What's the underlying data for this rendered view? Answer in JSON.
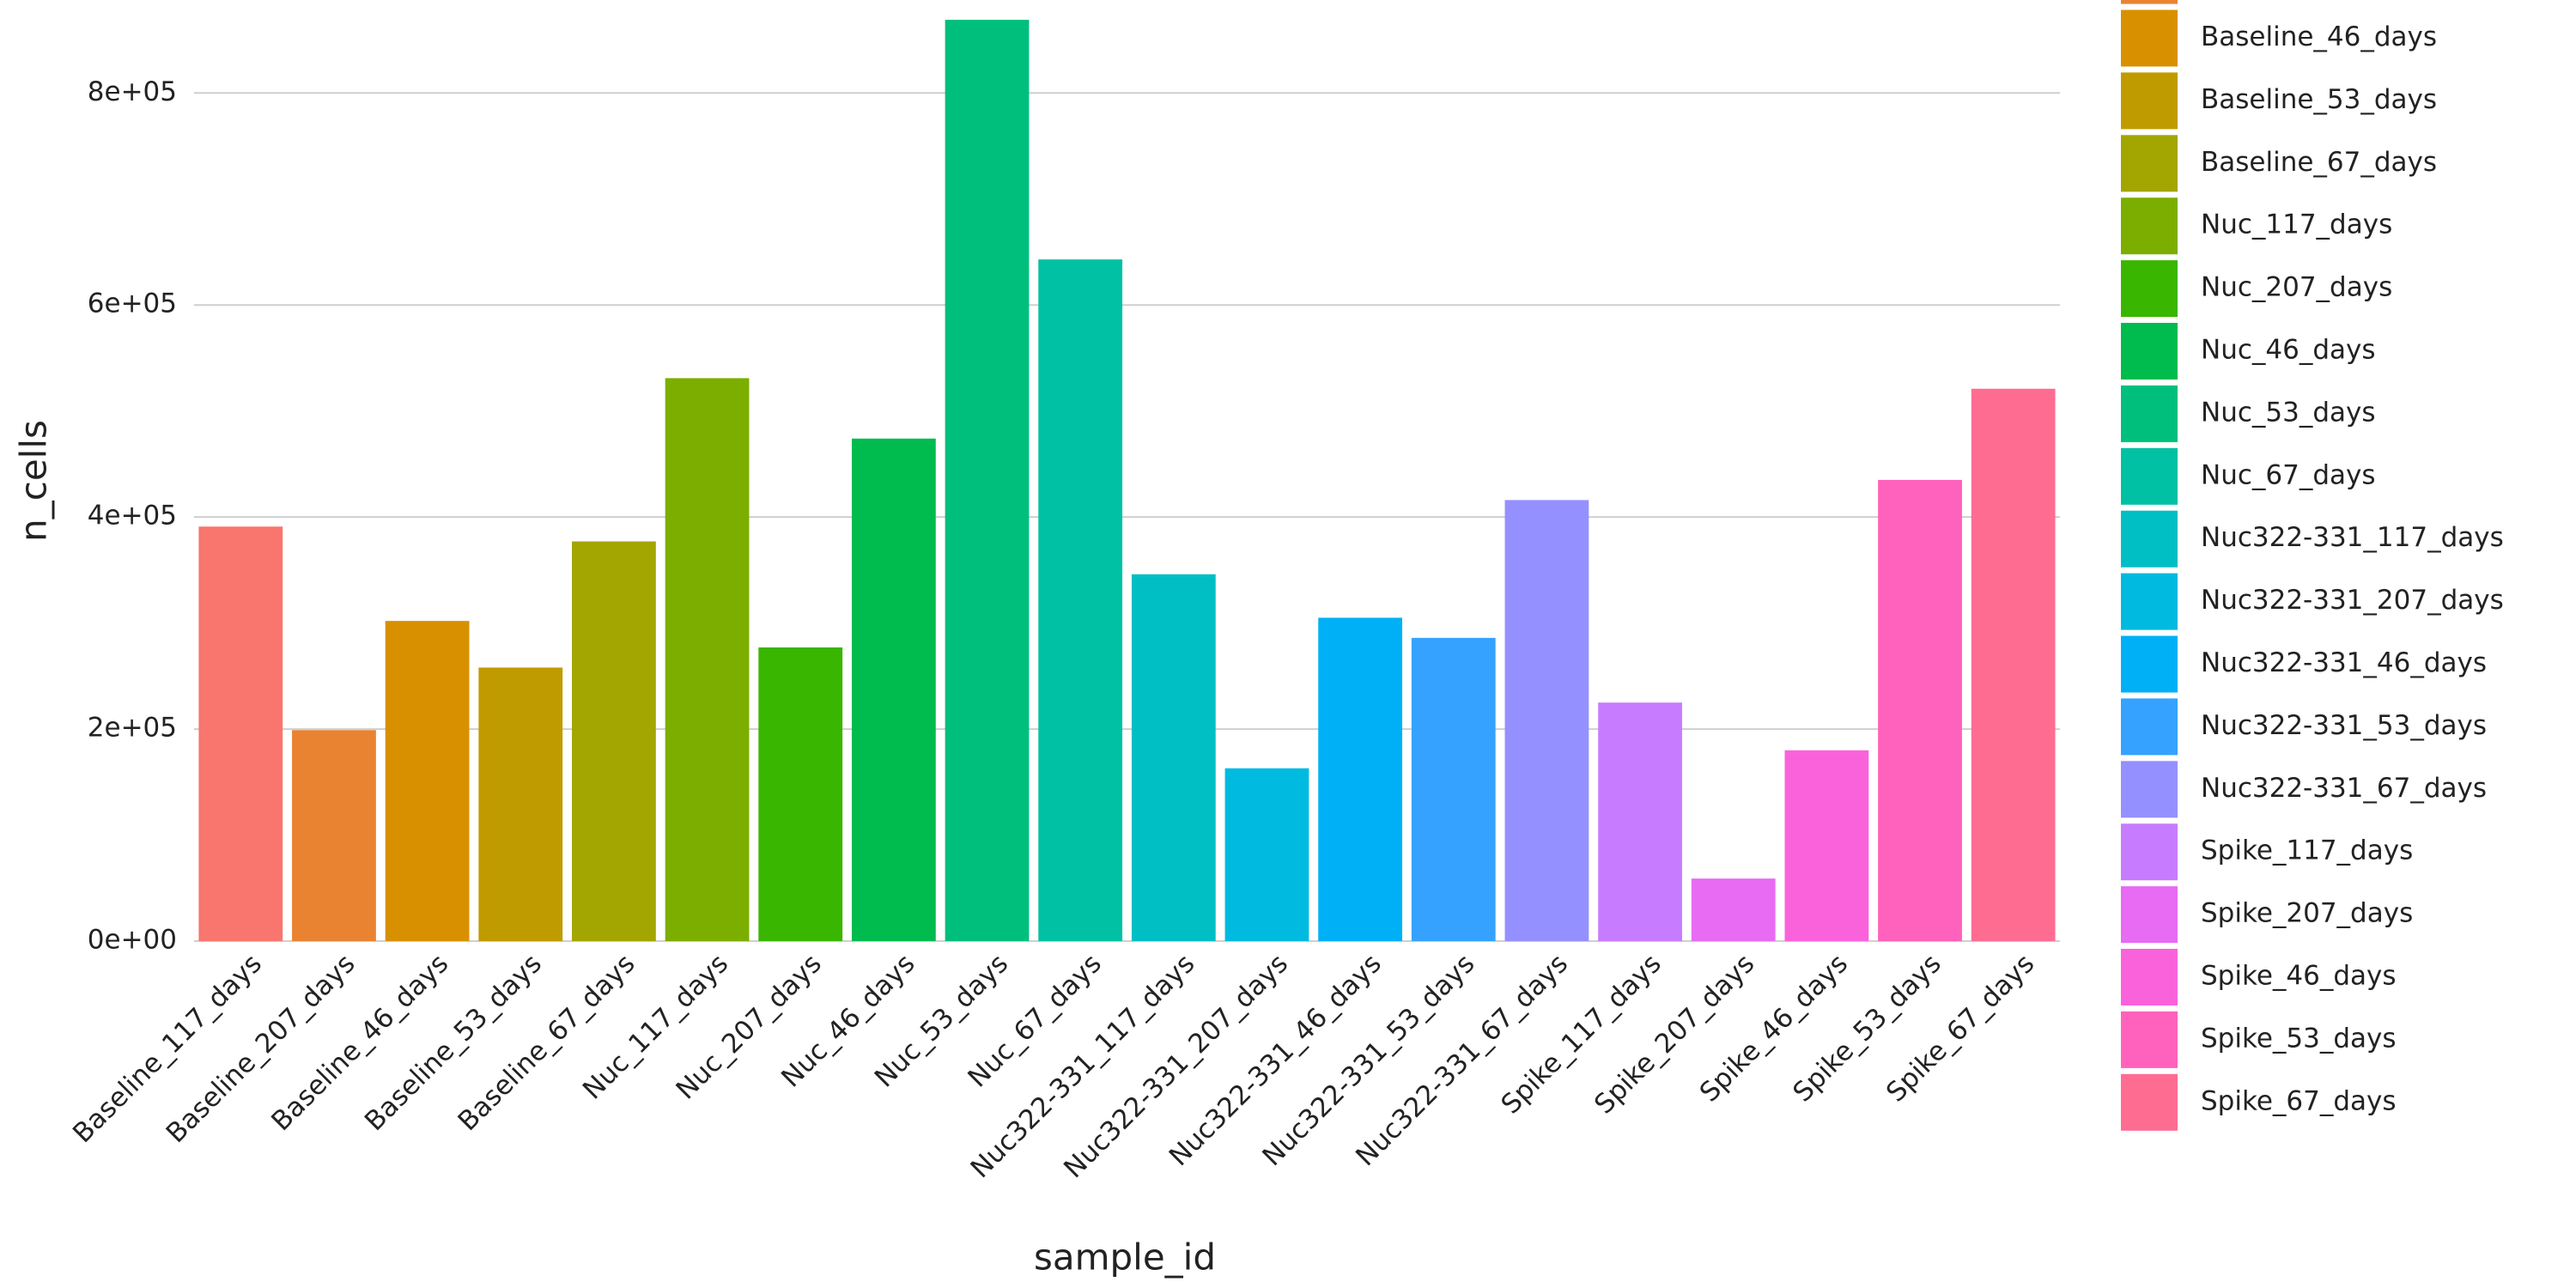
{
  "chart_data": {
    "type": "bar",
    "x_label": "sample_id",
    "y_label": "n_cells",
    "categories": [
      "Baseline_117_days",
      "Baseline_207_days",
      "Baseline_46_days",
      "Baseline_53_days",
      "Baseline_67_days",
      "Nuc_117_days",
      "Nuc_207_days",
      "Nuc_46_days",
      "Nuc_53_days",
      "Nuc_67_days",
      "Nuc322-331_117_days",
      "Nuc322-331_207_days",
      "Nuc322-331_46_days",
      "Nuc322-331_53_days",
      "Nuc322-331_67_days",
      "Spike_117_days",
      "Spike_207_days",
      "Spike_46_days",
      "Spike_53_days",
      "Spike_67_days"
    ],
    "values": [
      391000,
      199000,
      302000,
      258000,
      377000,
      531000,
      277000,
      474000,
      869000,
      643000,
      346000,
      163000,
      305000,
      286000,
      416000,
      225000,
      59000,
      180000,
      435000,
      521000
    ],
    "colors": [
      "#F8766D",
      "#EA8331",
      "#D89000",
      "#C09B00",
      "#A3A500",
      "#7CAE00",
      "#39B600",
      "#00BB4E",
      "#00BF7D",
      "#00C1A3",
      "#00BFC4",
      "#00BAE0",
      "#00B0F6",
      "#35A2FF",
      "#9590FF",
      "#C77CFF",
      "#E76BF3",
      "#FA62DB",
      "#FF62BC",
      "#FF6C91"
    ],
    "ylim": [
      0,
      887700
    ],
    "yticks": [
      {
        "value": 0,
        "label": "0e+00"
      },
      {
        "value": 200000,
        "label": "2e+05"
      },
      {
        "value": 400000,
        "label": "4e+05"
      },
      {
        "value": 600000,
        "label": "6e+05"
      },
      {
        "value": 800000,
        "label": "8e+05"
      }
    ],
    "grid": true
  }
}
